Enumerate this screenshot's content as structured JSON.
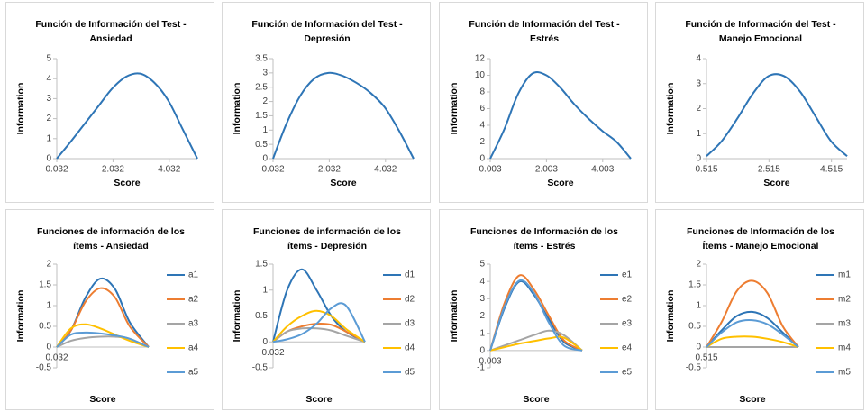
{
  "chart_data": [
    {
      "type": "line",
      "title": [
        "Función de Información del Test -",
        "Ansiedad"
      ],
      "x_label": "Score",
      "y_label": "Information",
      "x": [
        0.032,
        0.5,
        1,
        1.5,
        2,
        2.5,
        3,
        3.5,
        4,
        4.5,
        5.032
      ],
      "values": [
        0,
        0.8,
        1.7,
        2.6,
        3.5,
        4.1,
        4.25,
        3.8,
        2.9,
        1.5,
        0
      ],
      "color": "#2e75b6",
      "xlim": [
        0.032,
        5.032
      ],
      "xticks": [
        0.032,
        2.032,
        4.032
      ],
      "ylim": [
        0,
        5
      ],
      "yticks": [
        0,
        1,
        2,
        3,
        4,
        5
      ]
    },
    {
      "type": "line",
      "title": [
        "Función de Información del Test -",
        "Depresión"
      ],
      "x_label": "Score",
      "y_label": "Information",
      "x": [
        0.032,
        0.5,
        1,
        1.5,
        2,
        2.5,
        3,
        3.5,
        4,
        4.5,
        5.032
      ],
      "values": [
        0,
        1.2,
        2.2,
        2.8,
        3.0,
        2.9,
        2.65,
        2.3,
        1.8,
        1.0,
        0
      ],
      "color": "#2e75b6",
      "xlim": [
        0.032,
        5.032
      ],
      "xticks": [
        0.032,
        2.032,
        4.032
      ],
      "ylim": [
        0,
        3.5
      ],
      "yticks": [
        0,
        0.5,
        1,
        1.5,
        2,
        2.5,
        3,
        3.5
      ]
    },
    {
      "type": "line",
      "title": [
        "Función de Información del Test -",
        "Estrés"
      ],
      "x_label": "Score",
      "y_label": "Information",
      "x": [
        0.003,
        0.5,
        1,
        1.5,
        2,
        2.5,
        3,
        3.5,
        4,
        4.5,
        5.003
      ],
      "values": [
        0,
        3.5,
        7.8,
        10.2,
        10.0,
        8.5,
        6.5,
        4.8,
        3.3,
        2.0,
        0
      ],
      "color": "#2e75b6",
      "xlim": [
        0.003,
        5.003
      ],
      "xticks": [
        0.003,
        2.003,
        4.003
      ],
      "ylim": [
        0,
        12
      ],
      "yticks": [
        0,
        2,
        4,
        6,
        8,
        10,
        12
      ]
    },
    {
      "type": "line",
      "title": [
        "Función de Información del Test -",
        "Manejo Emocional"
      ],
      "x_label": "Score",
      "y_label": "Information",
      "x": [
        0.515,
        1,
        1.5,
        2,
        2.5,
        3,
        3.5,
        4,
        4.5,
        5.015
      ],
      "values": [
        0.1,
        0.7,
        1.6,
        2.6,
        3.3,
        3.3,
        2.7,
        1.7,
        0.7,
        0.1
      ],
      "color": "#2e75b6",
      "xlim": [
        0.515,
        5.015
      ],
      "xticks": [
        0.515,
        2.515,
        4.515
      ],
      "ylim": [
        0,
        4
      ],
      "yticks": [
        0,
        1,
        2,
        3,
        4
      ]
    },
    {
      "type": "line",
      "title": [
        "Funciones de información de los",
        "ítems - Ansiedad"
      ],
      "x_label": "Score",
      "y_label": "Information",
      "x": [
        0.032,
        0.8,
        1.6,
        2.4,
        3.2,
        4.0,
        5.032
      ],
      "xlim": [
        0.032,
        5.032
      ],
      "xticks": [
        0.032
      ],
      "ylim": [
        -0.5,
        2
      ],
      "yticks": [
        -0.5,
        0,
        0.5,
        1,
        1.5,
        2
      ],
      "series": [
        {
          "name": "a1",
          "color": "#2e75b6",
          "values": [
            0,
            0.4,
            1.2,
            1.65,
            1.4,
            0.6,
            0
          ]
        },
        {
          "name": "a2",
          "color": "#ed7d31",
          "values": [
            0,
            0.4,
            1.1,
            1.42,
            1.2,
            0.5,
            0
          ]
        },
        {
          "name": "a3",
          "color": "#a5a5a5",
          "values": [
            0,
            0.15,
            0.22,
            0.25,
            0.25,
            0.2,
            0
          ]
        },
        {
          "name": "a4",
          "color": "#ffc000",
          "values": [
            0,
            0.45,
            0.55,
            0.45,
            0.3,
            0.15,
            0
          ]
        },
        {
          "name": "a5",
          "color": "#5b9bd5",
          "values": [
            0,
            0.3,
            0.35,
            0.33,
            0.28,
            0.2,
            0
          ]
        }
      ]
    },
    {
      "type": "line",
      "title": [
        "Funciones de información de los",
        "ítems - Depresión"
      ],
      "x_label": "Score",
      "y_label": "Information",
      "x": [
        0.032,
        0.8,
        1.6,
        2.4,
        3.2,
        4.0,
        5.032
      ],
      "xlim": [
        0.032,
        5.032
      ],
      "xticks": [
        0.032
      ],
      "ylim": [
        -0.5,
        1.5
      ],
      "yticks": [
        -0.5,
        0,
        0.5,
        1,
        1.5
      ],
      "series": [
        {
          "name": "d1",
          "color": "#2e75b6",
          "values": [
            0,
            1.0,
            1.4,
            1.0,
            0.5,
            0.2,
            0
          ]
        },
        {
          "name": "d2",
          "color": "#ed7d31",
          "values": [
            0,
            0.2,
            0.3,
            0.35,
            0.33,
            0.2,
            0
          ]
        },
        {
          "name": "d3",
          "color": "#a5a5a5",
          "values": [
            0,
            0.2,
            0.26,
            0.26,
            0.22,
            0.12,
            0
          ]
        },
        {
          "name": "d4",
          "color": "#ffc000",
          "values": [
            0,
            0.3,
            0.5,
            0.6,
            0.5,
            0.25,
            0
          ]
        },
        {
          "name": "d5",
          "color": "#5b9bd5",
          "values": [
            0,
            0.05,
            0.15,
            0.35,
            0.65,
            0.7,
            0
          ]
        }
      ]
    },
    {
      "type": "line",
      "title": [
        "Funciones de Información de los",
        "ítems - Estrés"
      ],
      "x_label": "Score",
      "y_label": "Information",
      "x": [
        0.003,
        0.8,
        1.6,
        2.4,
        3.2,
        4.0,
        5.003
      ],
      "xlim": [
        0.003,
        5.003
      ],
      "xticks": [
        0.003
      ],
      "ylim": [
        -1,
        5
      ],
      "yticks": [
        -1,
        0,
        1,
        2,
        3,
        4,
        5
      ],
      "series": [
        {
          "name": "e1",
          "color": "#2e75b6",
          "values": [
            0,
            2.5,
            4.0,
            3.2,
            1.8,
            0.5,
            0
          ]
        },
        {
          "name": "e2",
          "color": "#ed7d31",
          "values": [
            0,
            2.8,
            4.35,
            3.5,
            2.0,
            0.6,
            0
          ]
        },
        {
          "name": "e3",
          "color": "#a5a5a5",
          "values": [
            0,
            0.3,
            0.6,
            0.9,
            1.15,
            0.9,
            0
          ]
        },
        {
          "name": "e4",
          "color": "#ffc000",
          "values": [
            0,
            0.2,
            0.4,
            0.55,
            0.7,
            0.75,
            0
          ]
        },
        {
          "name": "e5",
          "color": "#5b9bd5",
          "values": [
            0,
            2.6,
            4.05,
            3.3,
            1.6,
            0.3,
            0
          ]
        }
      ]
    },
    {
      "type": "line",
      "title": [
        "Funciones de Información de los",
        "Ítems - Manejo Emocional"
      ],
      "x_label": "Score",
      "y_label": "Information",
      "x": [
        0.515,
        1.25,
        2.0,
        2.75,
        3.5,
        4.25,
        5.015
      ],
      "xlim": [
        0.515,
        5.015
      ],
      "xticks": [
        0.515
      ],
      "ylim": [
        -0.5,
        2
      ],
      "yticks": [
        -0.5,
        0,
        0.5,
        1,
        1.5,
        2
      ],
      "series": [
        {
          "name": "m1",
          "color": "#2e75b6",
          "values": [
            0,
            0.4,
            0.75,
            0.85,
            0.7,
            0.35,
            0
          ]
        },
        {
          "name": "m2",
          "color": "#ed7d31",
          "values": [
            0,
            0.6,
            1.35,
            1.6,
            1.3,
            0.5,
            0
          ]
        },
        {
          "name": "m3",
          "color": "#a5a5a5",
          "values": [
            0,
            0,
            0,
            0,
            0,
            0,
            0
          ]
        },
        {
          "name": "m4",
          "color": "#ffc000",
          "values": [
            0,
            0.2,
            0.25,
            0.25,
            0.2,
            0.12,
            0
          ]
        },
        {
          "name": "m5",
          "color": "#5b9bd5",
          "values": [
            0,
            0.35,
            0.6,
            0.65,
            0.55,
            0.3,
            0
          ]
        }
      ]
    }
  ]
}
